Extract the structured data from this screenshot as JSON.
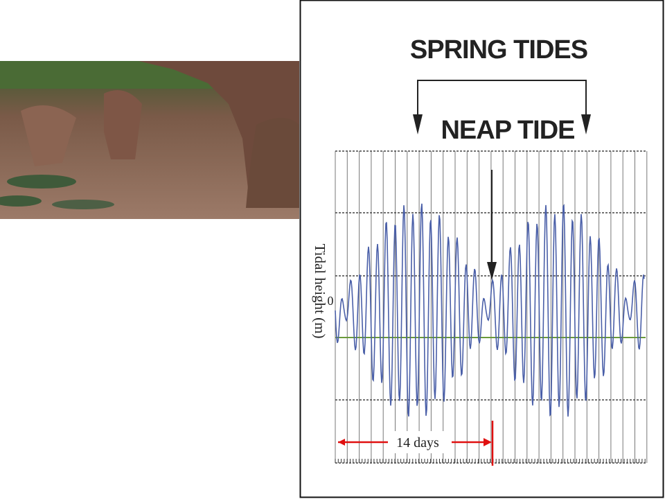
{
  "diagram": {
    "title": "SPRING TIDES",
    "subtitle": "NEAP TIDE",
    "y_label": "Tidal height (m)",
    "zero_label": "0",
    "period_label": "14 days"
  }
}
